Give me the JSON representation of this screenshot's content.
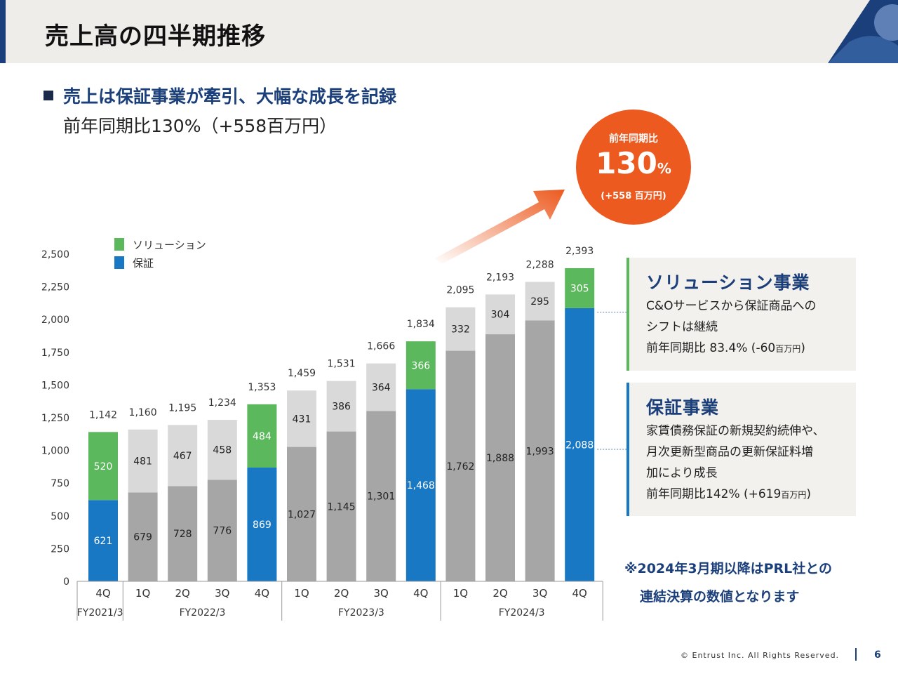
{
  "header": {
    "title": "売上高の四半期推移"
  },
  "headline": "売上は保証事業が牽引、大幅な成長を記録",
  "subline": "前年同期比130%（+558百万円）",
  "legend": [
    {
      "label": "ソリューション",
      "color": "#5cb85c"
    },
    {
      "label": "保証",
      "color": "#1878c4"
    }
  ],
  "bubble": {
    "label": "前年同期比",
    "value": "130",
    "unit": "%",
    "note": "(+558 百万円)"
  },
  "solution_box": {
    "title": "ソリューション事業",
    "line1": "C&Oサービスから保証商品への",
    "line2": "シフトは継続",
    "line3_main": "前年同期比 83.4% (-60",
    "line3_small": "百万円",
    "line3_end": ")"
  },
  "guarantee_box": {
    "title": "保証事業",
    "line1": "家賃債務保証の新規契約続伸や、",
    "line2": "月次更新型商品の更新保証料増",
    "line3": "加により成長",
    "line4_main": "前年同期比142% (+619",
    "line4_small": "百万円",
    "line4_end": ")"
  },
  "note": {
    "line1": "※2024年3月期以降はPRL社との",
    "line2": "連結決算の数値となります"
  },
  "footer": {
    "copyright": "© Entrust Inc. All Rights Reserved.",
    "page": "6"
  },
  "colors": {
    "solution": "#5cb85c",
    "guarantee": "#1878c4",
    "solution_other": "#d9d9d9",
    "guarantee_other": "#a6a6a6",
    "accent_orange": "#ec5a1f",
    "navy": "#1b3f7a"
  },
  "chart_data": {
    "type": "bar",
    "stacked": true,
    "categories": [
      "4Q",
      "1Q",
      "2Q",
      "3Q",
      "4Q",
      "1Q",
      "2Q",
      "3Q",
      "4Q",
      "1Q",
      "2Q",
      "3Q",
      "4Q"
    ],
    "fiscal_groups": [
      {
        "label": "FY2021/3",
        "count": 1
      },
      {
        "label": "FY2022/3",
        "count": 4
      },
      {
        "label": "FY2023/3",
        "count": 4
      },
      {
        "label": "FY2024/3",
        "count": 4
      }
    ],
    "series": [
      {
        "name": "保証",
        "values": [
          621,
          679,
          728,
          776,
          869,
          1027,
          1145,
          1301,
          1468,
          1762,
          1888,
          1993,
          2088
        ]
      },
      {
        "name": "ソリューション",
        "values": [
          520,
          481,
          467,
          458,
          484,
          431,
          386,
          364,
          366,
          332,
          304,
          295,
          305
        ]
      }
    ],
    "totals": [
      1142,
      1160,
      1195,
      1234,
      1353,
      1459,
      1531,
      1666,
      1834,
      2095,
      2193,
      2288,
      2393
    ],
    "highlighted": [
      true,
      false,
      false,
      false,
      true,
      false,
      false,
      false,
      true,
      false,
      false,
      false,
      true
    ],
    "yticks": [
      0,
      250,
      500,
      750,
      1000,
      1250,
      1500,
      1750,
      2000,
      2250,
      2500
    ],
    "ylim": [
      0,
      2500
    ],
    "grid": false
  }
}
